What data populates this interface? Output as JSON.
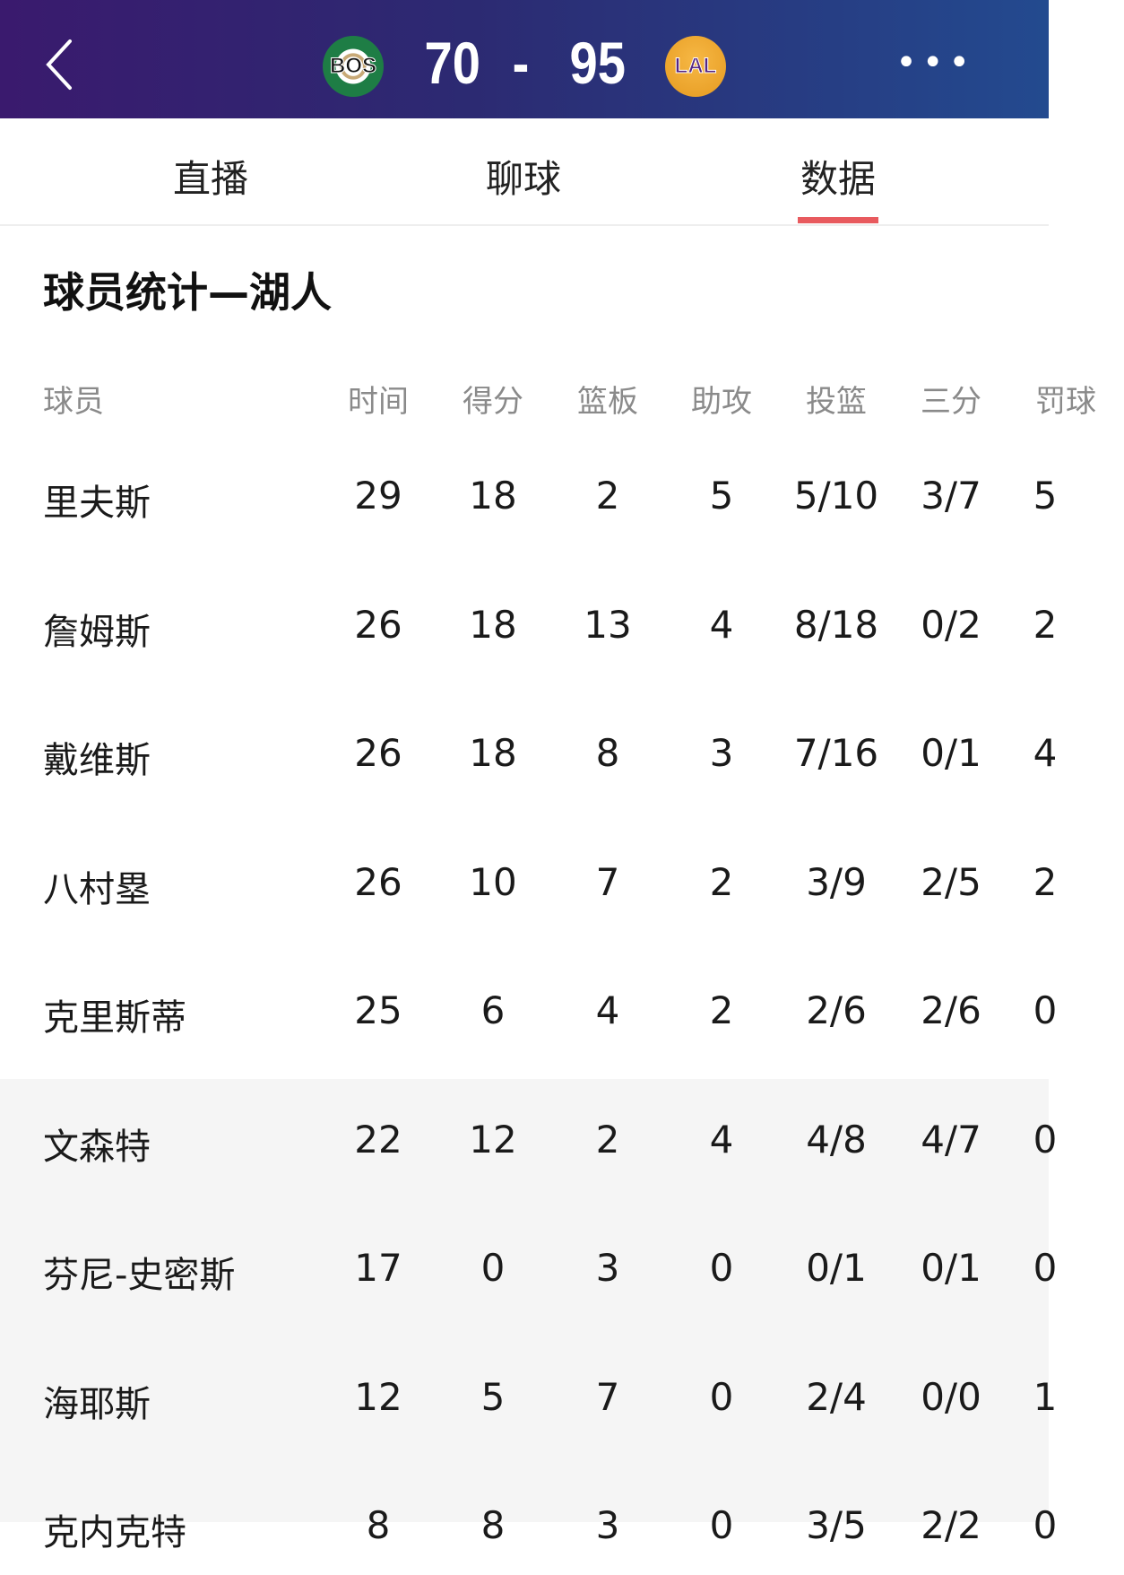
{
  "header": {
    "home_team": "BOS",
    "away_team": "LAL",
    "home_score": "70",
    "separator": "-",
    "away_score": "95",
    "home_color": "#1e7d45",
    "away_color": "#552583"
  },
  "tabs": [
    {
      "label": "直播",
      "active": false
    },
    {
      "label": "聊球",
      "active": false
    },
    {
      "label": "数据",
      "active": true
    }
  ],
  "accent_color": "#e85a5e",
  "section_title": "球员统计—湖人",
  "columns": [
    "球员",
    "时间",
    "得分",
    "篮板",
    "助攻",
    "投篮",
    "三分",
    "罚球"
  ],
  "players": [
    {
      "name": "里夫斯",
      "stats": [
        "29",
        "18",
        "2",
        "5",
        "5/10",
        "3/7",
        "5"
      ]
    },
    {
      "name": "詹姆斯",
      "stats": [
        "26",
        "18",
        "13",
        "4",
        "8/18",
        "0/2",
        "2"
      ]
    },
    {
      "name": "戴维斯",
      "stats": [
        "26",
        "18",
        "8",
        "3",
        "7/16",
        "0/1",
        "4"
      ]
    },
    {
      "name": "八村塁",
      "stats": [
        "26",
        "10",
        "7",
        "2",
        "3/9",
        "2/5",
        "2"
      ]
    },
    {
      "name": "克里斯蒂",
      "stats": [
        "25",
        "6",
        "4",
        "2",
        "2/6",
        "2/6",
        "0"
      ]
    },
    {
      "name": "文森特",
      "stats": [
        "22",
        "12",
        "2",
        "4",
        "4/8",
        "4/7",
        "0"
      ]
    },
    {
      "name": "芬尼-史密斯",
      "stats": [
        "17",
        "0",
        "3",
        "0",
        "0/1",
        "0/1",
        "0"
      ]
    },
    {
      "name": "海耶斯",
      "stats": [
        "12",
        "5",
        "7",
        "0",
        "2/4",
        "0/0",
        "1"
      ]
    },
    {
      "name": "克内克特",
      "stats": [
        "8",
        "8",
        "3",
        "0",
        "3/5",
        "2/2",
        "0"
      ]
    }
  ]
}
